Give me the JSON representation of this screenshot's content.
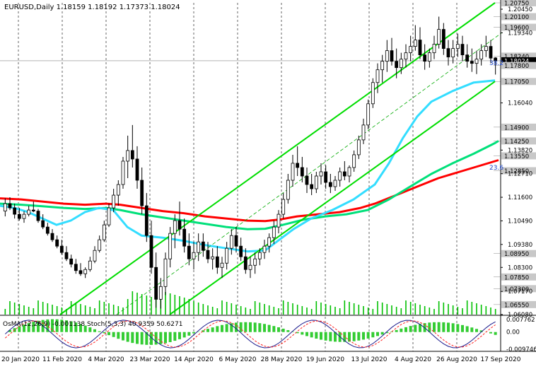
{
  "header": {
    "symbol": "EURUSD,Daily",
    "ohlc": "1.18159 1.18192 1.17373 1.18024"
  },
  "osma_header": "OsMA(12,26,9) -0.001138 Stoch(5,3,3) 40.9359 50.6271",
  "chart_data": {
    "type": "candlestick",
    "instrument": "EURUSD",
    "timeframe": "Daily",
    "ylim": [
      1.0608,
      1.2075
    ],
    "x_ticks": [
      "20 Jan 2020",
      "11 Feb 2020",
      "4 Mar 2020",
      "23 Mar 2020",
      "14 Apr 2020",
      "6 May 2020",
      "28 May 2020",
      "19 Jun 2020",
      "13 Jul 2020",
      "4 Aug 2020",
      "26 Aug 2020",
      "17 Sep 2020"
    ],
    "price_ticks": [
      "1.20450",
      "1.19340",
      "1.16040",
      "1.13820",
      "1.12710",
      "1.11600",
      "1.10490",
      "1.09380",
      "1.08300",
      "1.07170",
      "1.06080"
    ],
    "level_labels": [
      {
        "text": "1.20750",
        "value": 1.2075,
        "highlight": true
      },
      {
        "text": "1.20100",
        "value": 1.201,
        "highlight": true
      },
      {
        "text": "1.19600",
        "value": 1.196,
        "highlight": true
      },
      {
        "text": "1.18240",
        "value": 1.1824,
        "highlight": true
      },
      {
        "text": "1.18024",
        "value": 1.18024,
        "highlight": "current"
      },
      {
        "text": "1.17800",
        "value": 1.178,
        "highlight": true
      },
      {
        "text": "1.17050",
        "value": 1.1705,
        "highlight": true
      },
      {
        "text": "1.14900",
        "value": 1.149,
        "highlight": true
      },
      {
        "text": "1.14250",
        "value": 1.1425,
        "highlight": true
      },
      {
        "text": "1.13550",
        "value": 1.1355,
        "highlight": true
      },
      {
        "text": "1.12850",
        "value": 1.1285,
        "highlight": true
      },
      {
        "text": "1.08950",
        "value": 1.0895,
        "highlight": true
      },
      {
        "text": "1.07850",
        "value": 1.0785,
        "highlight": true
      },
      {
        "text": "1.07300",
        "value": 1.073,
        "highlight": true
      },
      {
        "text": "1.06550",
        "value": 1.0655,
        "highlight": true
      }
    ],
    "annotations": [
      "38.2",
      "23.6"
    ],
    "osma_ticks": [
      "0.007762",
      "0.00",
      "-0.009746"
    ],
    "osma_range": [
      -0.009746,
      0.007762
    ],
    "series": [
      {
        "kind": "ma",
        "color": "#ff0000",
        "points": [
          [
            0,
            1.1155
          ],
          [
            30,
            1.115
          ],
          [
            60,
            1.114
          ],
          [
            90,
            1.113
          ],
          [
            120,
            1.1125
          ],
          [
            150,
            1.113
          ],
          [
            170,
            1.1125
          ],
          [
            200,
            1.111
          ],
          [
            230,
            1.1095
          ],
          [
            260,
            1.1085
          ],
          [
            290,
            1.107
          ],
          [
            320,
            1.106
          ],
          [
            350,
            1.105
          ],
          [
            375,
            1.1048
          ],
          [
            395,
            1.1055
          ],
          [
            420,
            1.107
          ],
          [
            450,
            1.108
          ],
          [
            480,
            1.109
          ],
          [
            510,
            1.111
          ],
          [
            530,
            1.113
          ],
          [
            560,
            1.117
          ],
          [
            590,
            1.121
          ],
          [
            620,
            1.125
          ],
          [
            650,
            1.128
          ],
          [
            680,
            1.131
          ],
          [
            705,
            1.1335
          ]
        ]
      },
      {
        "kind": "ma",
        "color": "#00e07a",
        "points": [
          [
            0,
            1.113
          ],
          [
            30,
            1.1125
          ],
          [
            60,
            1.1118
          ],
          [
            90,
            1.111
          ],
          [
            120,
            1.1105
          ],
          [
            150,
            1.111
          ],
          [
            170,
            1.11
          ],
          [
            200,
            1.108
          ],
          [
            230,
            1.1065
          ],
          [
            260,
            1.105
          ],
          [
            290,
            1.1035
          ],
          [
            320,
            1.102
          ],
          [
            350,
            1.101
          ],
          [
            375,
            1.1012
          ],
          [
            400,
            1.103
          ],
          [
            430,
            1.1055
          ],
          [
            460,
            1.107
          ],
          [
            490,
            1.108
          ],
          [
            520,
            1.11
          ],
          [
            550,
            1.115
          ],
          [
            580,
            1.121
          ],
          [
            610,
            1.127
          ],
          [
            640,
            1.132
          ],
          [
            670,
            1.1365
          ],
          [
            700,
            1.1415
          ],
          [
            705,
            1.1425
          ]
        ]
      },
      {
        "kind": "ma",
        "color": "#33ddff",
        "points": [
          [
            0,
            1.112
          ],
          [
            20,
            1.111
          ],
          [
            40,
            1.109
          ],
          [
            60,
            1.106
          ],
          [
            80,
            1.103
          ],
          [
            100,
            1.105
          ],
          [
            120,
            1.109
          ],
          [
            140,
            1.111
          ],
          [
            160,
            1.11
          ],
          [
            180,
            1.102
          ],
          [
            200,
            1.098
          ],
          [
            230,
            1.097
          ],
          [
            260,
            1.0955
          ],
          [
            290,
            1.0935
          ],
          [
            320,
            1.092
          ],
          [
            350,
            1.0905
          ],
          [
            375,
            1.091
          ],
          [
            395,
            1.096
          ],
          [
            415,
            1.101
          ],
          [
            440,
            1.106
          ],
          [
            470,
            1.11
          ],
          [
            500,
            1.115
          ],
          [
            530,
            1.122
          ],
          [
            550,
            1.132
          ],
          [
            570,
            1.144
          ],
          [
            590,
            1.154
          ],
          [
            610,
            1.161
          ],
          [
            640,
            1.166
          ],
          [
            670,
            1.17
          ],
          [
            700,
            1.171
          ]
        ]
      },
      {
        "kind": "trend",
        "color": "#00dd00",
        "points": [
          [
            85,
            1.0608
          ],
          [
            700,
            1.2075
          ]
        ]
      },
      {
        "kind": "trend",
        "color": "#00dd00",
        "points": [
          [
            240,
            1.0608
          ],
          [
            700,
            1.1705
          ]
        ]
      },
      {
        "kind": "trend",
        "color": "#00aa00",
        "dashed": true,
        "points": [
          [
            165,
            1.0608
          ],
          [
            710,
            1.1935
          ]
        ]
      }
    ],
    "candles": [
      [
        1.1095,
        1.1155,
        1.107,
        1.113
      ],
      [
        1.113,
        1.116,
        1.11,
        1.111
      ],
      [
        1.111,
        1.113,
        1.106,
        1.108
      ],
      [
        1.108,
        1.111,
        1.105,
        1.106
      ],
      [
        1.106,
        1.1095,
        1.104,
        1.108
      ],
      [
        1.108,
        1.112,
        1.107,
        1.11
      ],
      [
        1.11,
        1.114,
        1.109,
        1.1095
      ],
      [
        1.1095,
        1.1105,
        1.104,
        1.105
      ],
      [
        1.105,
        1.108,
        1.101,
        1.102
      ],
      [
        1.102,
        1.104,
        1.098,
        1.099
      ],
      [
        1.099,
        1.101,
        1.095,
        1.096
      ],
      [
        1.096,
        1.098,
        1.092,
        1.093
      ],
      [
        1.093,
        1.096,
        1.089,
        1.09
      ],
      [
        1.09,
        1.093,
        1.086,
        1.087
      ],
      [
        1.087,
        1.089,
        1.083,
        1.0845
      ],
      [
        1.0845,
        1.087,
        1.08,
        1.0815
      ],
      [
        1.0815,
        1.085,
        1.079,
        1.08
      ],
      [
        1.08,
        1.083,
        1.078,
        1.082
      ],
      [
        1.082,
        1.088,
        1.081,
        1.086
      ],
      [
        1.086,
        1.093,
        1.085,
        1.091
      ],
      [
        1.091,
        1.098,
        1.09,
        1.096
      ],
      [
        1.096,
        1.105,
        1.095,
        1.103
      ],
      [
        1.103,
        1.113,
        1.102,
        1.111
      ],
      [
        1.111,
        1.12,
        1.109,
        1.117
      ],
      [
        1.117,
        1.124,
        1.112,
        1.122
      ],
      [
        1.122,
        1.135,
        1.12,
        1.133
      ],
      [
        1.133,
        1.145,
        1.125,
        1.138
      ],
      [
        1.138,
        1.15,
        1.13,
        1.134
      ],
      [
        1.134,
        1.14,
        1.12,
        1.124
      ],
      [
        1.124,
        1.13,
        1.108,
        1.112
      ],
      [
        1.112,
        1.118,
        1.095,
        1.098
      ],
      [
        1.098,
        1.105,
        1.08,
        1.083
      ],
      [
        1.083,
        1.09,
        1.064,
        1.068
      ],
      [
        1.068,
        1.078,
        1.0636,
        1.074
      ],
      [
        1.074,
        1.09,
        1.07,
        1.087
      ],
      [
        1.087,
        1.102,
        1.083,
        1.099
      ],
      [
        1.099,
        1.108,
        1.092,
        1.105
      ],
      [
        1.105,
        1.114,
        1.098,
        1.101
      ],
      [
        1.101,
        1.106,
        1.09,
        1.093
      ],
      [
        1.093,
        1.099,
        1.084,
        1.087
      ],
      [
        1.087,
        1.095,
        1.082,
        1.09
      ],
      [
        1.09,
        1.099,
        1.086,
        1.095
      ],
      [
        1.095,
        1.099,
        1.088,
        1.091
      ],
      [
        1.091,
        1.095,
        1.085,
        1.087
      ],
      [
        1.087,
        1.092,
        1.082,
        1.088
      ],
      [
        1.088,
        1.093,
        1.08,
        1.083
      ],
      [
        1.083,
        1.088,
        1.078,
        1.085
      ],
      [
        1.085,
        1.095,
        1.082,
        1.092
      ],
      [
        1.092,
        1.101,
        1.089,
        1.098
      ],
      [
        1.098,
        1.102,
        1.09,
        1.093
      ],
      [
        1.093,
        1.097,
        1.086,
        1.088
      ],
      [
        1.088,
        1.092,
        1.08,
        1.082
      ],
      [
        1.082,
        1.088,
        1.078,
        1.084
      ],
      [
        1.084,
        1.09,
        1.08,
        1.087
      ],
      [
        1.087,
        1.092,
        1.084,
        1.09
      ],
      [
        1.09,
        1.096,
        1.087,
        1.093
      ],
      [
        1.093,
        1.099,
        1.09,
        1.097
      ],
      [
        1.097,
        1.105,
        1.094,
        1.102
      ],
      [
        1.102,
        1.11,
        1.099,
        1.108
      ],
      [
        1.108,
        1.118,
        1.106,
        1.115
      ],
      [
        1.115,
        1.127,
        1.113,
        1.124
      ],
      [
        1.124,
        1.136,
        1.121,
        1.132
      ],
      [
        1.132,
        1.14,
        1.126,
        1.13
      ],
      [
        1.13,
        1.135,
        1.123,
        1.126
      ],
      [
        1.126,
        1.13,
        1.118,
        1.122
      ],
      [
        1.122,
        1.127,
        1.117,
        1.12
      ],
      [
        1.12,
        1.128,
        1.118,
        1.126
      ],
      [
        1.126,
        1.132,
        1.122,
        1.128
      ],
      [
        1.128,
        1.131,
        1.12,
        1.123
      ],
      [
        1.123,
        1.127,
        1.118,
        1.121
      ],
      [
        1.121,
        1.126,
        1.119,
        1.124
      ],
      [
        1.124,
        1.13,
        1.121,
        1.128
      ],
      [
        1.128,
        1.133,
        1.124,
        1.126
      ],
      [
        1.126,
        1.131,
        1.123,
        1.13
      ],
      [
        1.13,
        1.138,
        1.128,
        1.136
      ],
      [
        1.136,
        1.145,
        1.134,
        1.143
      ],
      [
        1.143,
        1.153,
        1.141,
        1.15
      ],
      [
        1.15,
        1.162,
        1.148,
        1.16
      ],
      [
        1.16,
        1.172,
        1.158,
        1.17
      ],
      [
        1.17,
        1.179,
        1.165,
        1.176
      ],
      [
        1.176,
        1.183,
        1.17,
        1.18
      ],
      [
        1.18,
        1.19,
        1.175,
        1.185
      ],
      [
        1.185,
        1.191,
        1.178,
        1.18
      ],
      [
        1.18,
        1.186,
        1.172,
        1.177
      ],
      [
        1.177,
        1.184,
        1.174,
        1.181
      ],
      [
        1.181,
        1.188,
        1.177,
        1.184
      ],
      [
        1.184,
        1.192,
        1.18,
        1.187
      ],
      [
        1.187,
        1.197,
        1.185,
        1.19
      ],
      [
        1.19,
        1.196,
        1.181,
        1.183
      ],
      [
        1.183,
        1.188,
        1.176,
        1.18
      ],
      [
        1.18,
        1.186,
        1.177,
        1.184
      ],
      [
        1.184,
        1.192,
        1.181,
        1.188
      ],
      [
        1.188,
        1.201,
        1.186,
        1.195
      ],
      [
        1.195,
        1.198,
        1.183,
        1.186
      ],
      [
        1.186,
        1.19,
        1.178,
        1.182
      ],
      [
        1.182,
        1.19,
        1.179,
        1.186
      ],
      [
        1.186,
        1.193,
        1.182,
        1.188
      ],
      [
        1.188,
        1.192,
        1.18,
        1.183
      ],
      [
        1.183,
        1.188,
        1.177,
        1.18
      ],
      [
        1.18,
        1.186,
        1.175,
        1.179
      ],
      [
        1.179,
        1.185,
        1.174,
        1.181
      ],
      [
        1.181,
        1.188,
        1.178,
        1.185
      ],
      [
        1.185,
        1.192,
        1.182,
        1.187
      ],
      [
        1.187,
        1.19,
        1.179,
        1.1815
      ],
      [
        1.18159,
        1.18192,
        1.17373,
        1.18024
      ]
    ]
  }
}
